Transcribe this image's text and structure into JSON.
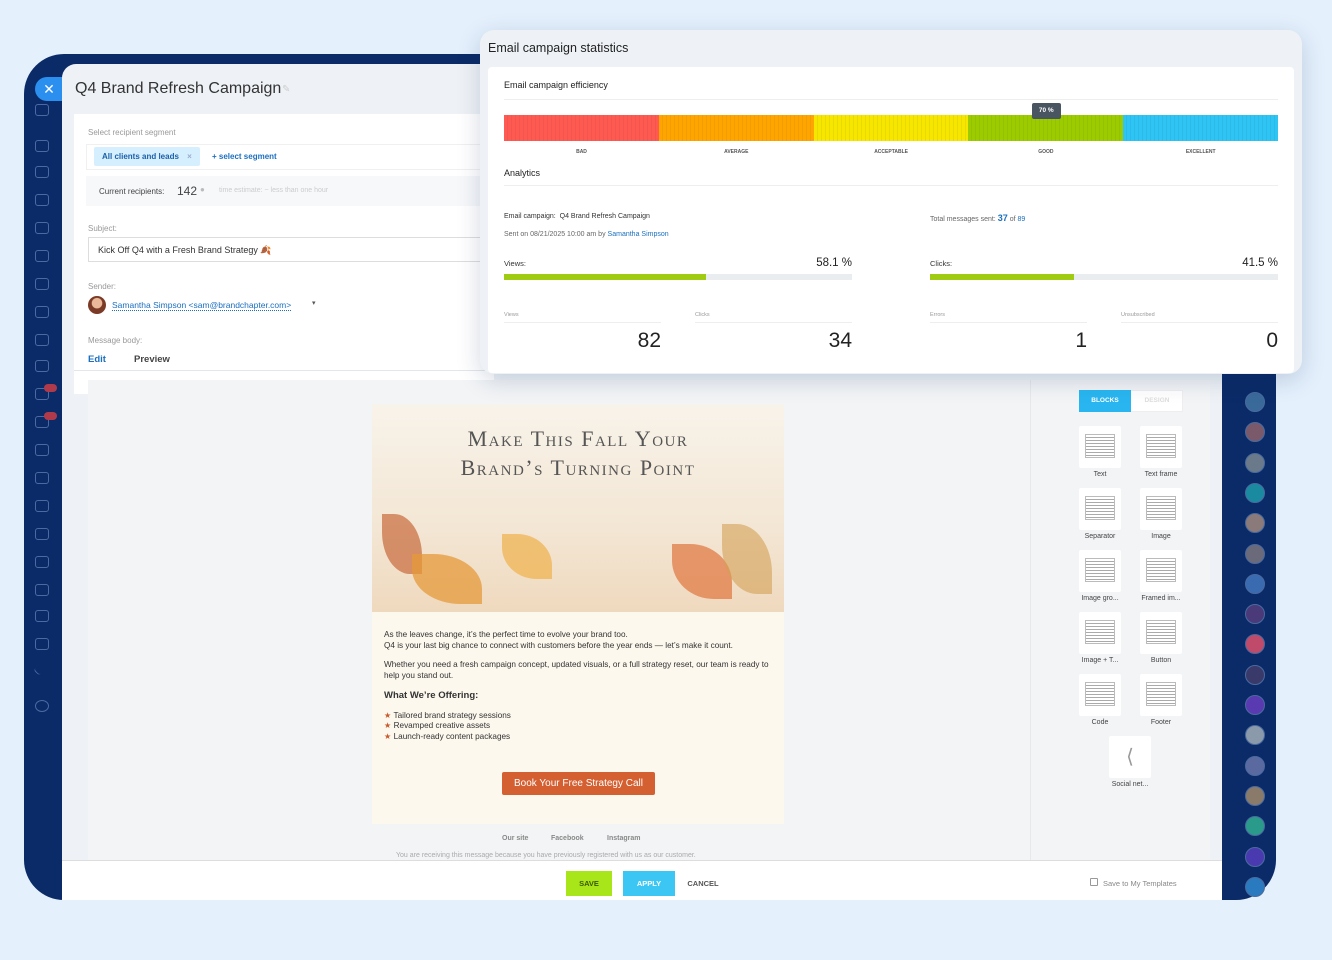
{
  "campaign": {
    "title": "Q4 Brand Refresh Campaign",
    "segment_label": "Select recipient segment",
    "segment_chip": "All clients and leads",
    "chip_close": "×",
    "add_segment": "+ select segment",
    "recipients_label": "Current recipients:",
    "recipients_count": "142",
    "time_estimate": "time estimate: ~ less than one hour",
    "subject_label": "Subject:",
    "subject_value": "Kick Off Q4 with a Fresh Brand Strategy 🍂",
    "sender_label": "Sender:",
    "sender_value": "Samantha Simpson <sam@brandchapter.com>",
    "body_label": "Message body:",
    "tabs": [
      "Edit",
      "Preview"
    ]
  },
  "email": {
    "headline_1": "Make This Fall Your",
    "headline_2": "Brand’s Turning Point",
    "p1": "As the leaves change, it’s the perfect time to evolve your brand too.",
    "p2": "Q4 is your last big chance to connect with customers before the year ends — let’s make it count.",
    "p3": "Whether you need a fresh campaign concept, updated visuals, or a full strategy reset, our team is ready to help you stand out.",
    "offer_title": "What We’re Offering:",
    "offers": [
      "Tailored brand strategy sessions",
      "Revamped creative assets",
      "Launch-ready content packages"
    ],
    "cta": "Book Your Free Strategy Call",
    "links": [
      "Our site",
      "Facebook",
      "Instagram"
    ],
    "disclaimer": "You are receiving this message because you have previously registered with us as our customer."
  },
  "blocks": {
    "tabs": [
      "BLOCKS",
      "DESIGN"
    ],
    "items": [
      "Text",
      "Text frame",
      "Separator",
      "Image",
      "Image gro...",
      "Framed im...",
      "Image + T...",
      "Button",
      "Code",
      "Footer",
      "Social net..."
    ]
  },
  "footer": {
    "save": "SAVE",
    "apply": "APPLY",
    "cancel": "CANCEL",
    "save_template": "Save to My Templates"
  },
  "stats": {
    "title": "Email campaign statistics",
    "efficiency_title": "Email campaign efficiency",
    "efficiency_value": "70 %",
    "efficiency_percent": 70,
    "levels": [
      "BAD",
      "AVERAGE",
      "ACCEPTABLE",
      "GOOD",
      "EXCELLENT"
    ],
    "level_colors": [
      "#ff5a52",
      "#ffa500",
      "#f7e600",
      "#9ccc00",
      "#2ec5f5"
    ],
    "analytics_title": "Analytics",
    "campaign_label": "Email campaign:",
    "campaign_name": "Q4 Brand Refresh Campaign",
    "sent_on": "Sent on 08/21/2025 10:00 am by",
    "sent_by": "Samantha Simpson",
    "total_label": "Total messages sent:",
    "total_sent": "37",
    "total_of": "of",
    "total_all": "89",
    "views_label": "Views:",
    "views_pct": "58.1 %",
    "views_fraction": 0.581,
    "clicks_label": "Clicks:",
    "clicks_pct": "41.5 %",
    "clicks_fraction": 0.415,
    "counters": [
      {
        "label": "Views",
        "value": "82"
      },
      {
        "label": "Clicks",
        "value": "34"
      },
      {
        "label": "Errors",
        "value": "1"
      },
      {
        "label": "Unsubscribed",
        "value": "0"
      }
    ]
  }
}
